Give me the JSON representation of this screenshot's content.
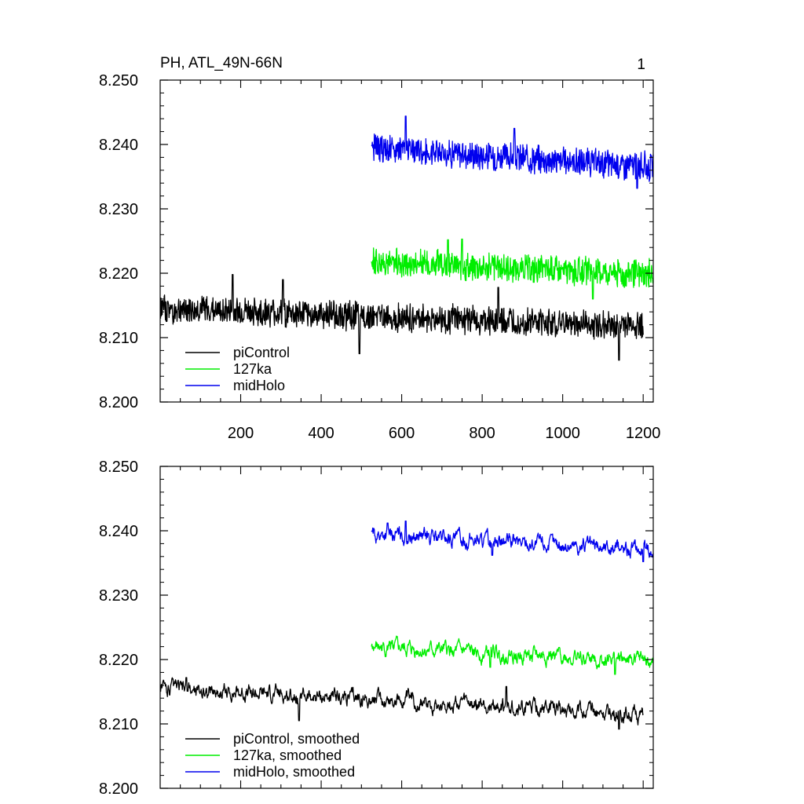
{
  "figure": {
    "title": "PH, ATL_49N-66N",
    "panel_number": "1"
  },
  "chart_data": [
    {
      "type": "line",
      "title": "PH, ATL_49N-66N",
      "xlabel": "",
      "ylabel": "",
      "xlim": [
        0,
        1225
      ],
      "ylim": [
        8.2,
        8.25
      ],
      "x_ticks": [
        "200",
        "400",
        "600",
        "800",
        "1000",
        "1200"
      ],
      "y_ticks": [
        "8.250",
        "8.240",
        "8.230",
        "8.220",
        "8.210",
        "8.200"
      ],
      "grid": false,
      "legend_position": "bottom-left",
      "series": [
        {
          "name": "piControl",
          "color": "#000000",
          "x_start": 1,
          "x_end": 1200,
          "mean_start": 8.2145,
          "mean_end": 8.2118,
          "noise": 0.0025,
          "spike_up": [
            [
              180,
              8.2198
            ],
            [
              305,
              8.219
            ],
            [
              840,
              8.2178
            ]
          ],
          "spike_down": [
            [
              1140,
              8.2065
            ],
            [
              495,
              8.2075
            ]
          ]
        },
        {
          "name": "127ka",
          "color": "#00ee00",
          "x_start": 525,
          "x_end": 1225,
          "mean_start": 8.2218,
          "mean_end": 8.2198,
          "noise": 0.0025,
          "spike_up": [
            [
              750,
              8.2253
            ],
            [
              715,
              8.2252
            ]
          ],
          "spike_down": [
            [
              1075,
              8.216
            ]
          ]
        },
        {
          "name": "midHolo",
          "color": "#0000ee",
          "x_start": 525,
          "x_end": 1225,
          "mean_start": 8.2395,
          "mean_end": 8.2365,
          "noise": 0.0025,
          "spike_up": [
            [
              610,
              8.2444
            ],
            [
              880,
              8.2425
            ]
          ],
          "spike_down": [
            [
              1185,
              8.2332
            ]
          ]
        }
      ]
    },
    {
      "type": "line",
      "title": "",
      "xlabel": "",
      "ylabel": "",
      "xlim": [
        0,
        1225
      ],
      "ylim": [
        8.2,
        8.25
      ],
      "x_ticks": [],
      "y_ticks": [
        "8.250",
        "8.240",
        "8.230",
        "8.220",
        "8.210",
        "8.200"
      ],
      "grid": false,
      "legend_position": "bottom-left",
      "series": [
        {
          "name": "piControl, smoothed",
          "color": "#000000",
          "x_start": 1,
          "x_end": 1200,
          "mean_start": 8.2155,
          "mean_end": 8.2115,
          "noise": 0.001,
          "spike_up": [
            [
              65,
              8.2172
            ],
            [
              860,
              8.2158
            ]
          ],
          "spike_down": [
            [
              1140,
              8.2092
            ],
            [
              345,
              8.2105
            ]
          ]
        },
        {
          "name": "127ka, smoothed",
          "color": "#00ee00",
          "x_start": 525,
          "x_end": 1225,
          "mean_start": 8.2218,
          "mean_end": 8.2198,
          "noise": 0.001,
          "spike_up": [
            [
              570,
              8.2228
            ]
          ],
          "spike_down": [
            [
              1130,
              8.2177
            ],
            [
              820,
              8.2188
            ]
          ]
        },
        {
          "name": "midHolo, smoothed",
          "color": "#0000ee",
          "x_start": 525,
          "x_end": 1225,
          "mean_start": 8.2395,
          "mean_end": 8.237,
          "noise": 0.001,
          "spike_up": [
            [
              610,
              8.2415
            ],
            [
              565,
              8.2412
            ]
          ],
          "spike_down": [
            [
              1200,
              8.2352
            ],
            [
              825,
              8.2362
            ]
          ]
        }
      ]
    }
  ]
}
